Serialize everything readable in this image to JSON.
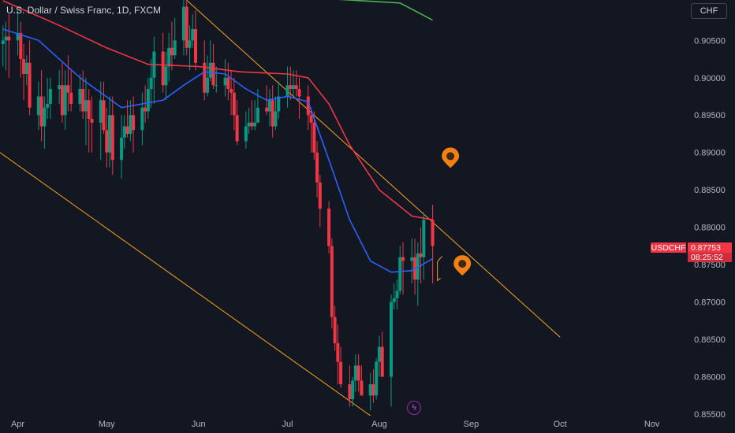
{
  "header": {
    "title": "U.S. Dollar / Swiss Franc, 1D, FXCM",
    "currency_button": "CHF"
  },
  "price_badge": {
    "symbol": "USDCHF",
    "price": "0.87753",
    "countdown": "08:25:52",
    "color": "#f23645"
  },
  "lightning_icon": "lightning-icon",
  "colors": {
    "background": "#131722",
    "up": "#089981",
    "down": "#f23645",
    "ma_fast": "#2962ff",
    "ma_slow": "#f23645",
    "ma_long": "#4caf50",
    "channel": "#f7a21b",
    "marker": "#f57f17"
  },
  "chart_data": {
    "type": "candlestick",
    "symbol": "USDCHF",
    "timeframe": "1D",
    "y_axis": {
      "ylim": [
        0.8548,
        0.9104
      ],
      "ticks": [
        "0.90500",
        "0.90000",
        "0.89500",
        "0.89000",
        "0.88500",
        "0.88000",
        "0.87500",
        "0.87000",
        "0.86500",
        "0.86000",
        "0.85500"
      ]
    },
    "x_axis": {
      "ticks": [
        "Apr",
        "May",
        "Jun",
        "Jul",
        "Aug",
        "Sep",
        "Oct",
        "Nov"
      ],
      "tick_dates": [
        "2024-04-01",
        "2024-05-01",
        "2024-06-01",
        "2024-07-01",
        "2024-08-01",
        "2024-09-01",
        "2024-10-01",
        "2024-11-01"
      ],
      "xlim": [
        "2024-03-26",
        "2024-11-12"
      ]
    },
    "series": [
      {
        "kind": "ohlc",
        "dates": [
          "2024-03-27",
          "2024-03-28",
          "2024-03-29",
          "2024-04-01",
          "2024-04-02",
          "2024-04-03",
          "2024-04-04",
          "2024-04-05",
          "2024-04-08",
          "2024-04-09",
          "2024-04-10",
          "2024-04-11",
          "2024-04-12",
          "2024-04-15",
          "2024-04-16",
          "2024-04-17",
          "2024-04-18",
          "2024-04-19",
          "2024-04-22",
          "2024-04-23",
          "2024-04-24",
          "2024-04-25",
          "2024-04-26",
          "2024-04-29",
          "2024-04-30",
          "2024-05-01",
          "2024-05-02",
          "2024-05-03",
          "2024-05-06",
          "2024-05-07",
          "2024-05-08",
          "2024-05-09",
          "2024-05-10",
          "2024-05-13",
          "2024-05-14",
          "2024-05-15",
          "2024-05-16",
          "2024-05-17",
          "2024-05-20",
          "2024-05-21",
          "2024-05-22",
          "2024-05-23",
          "2024-05-24",
          "2024-05-27",
          "2024-05-28",
          "2024-05-29",
          "2024-05-30",
          "2024-05-31",
          "2024-06-03",
          "2024-06-04",
          "2024-06-05",
          "2024-06-06",
          "2024-06-07",
          "2024-06-10",
          "2024-06-11",
          "2024-06-12",
          "2024-06-13",
          "2024-06-14",
          "2024-06-17",
          "2024-06-18",
          "2024-06-19",
          "2024-06-20",
          "2024-06-21",
          "2024-06-24",
          "2024-06-25",
          "2024-06-26",
          "2024-06-27",
          "2024-06-28",
          "2024-07-01",
          "2024-07-02",
          "2024-07-03",
          "2024-07-04",
          "2024-07-05",
          "2024-07-08",
          "2024-07-09",
          "2024-07-10",
          "2024-07-11",
          "2024-07-12",
          "2024-07-15",
          "2024-07-16",
          "2024-07-17",
          "2024-07-18",
          "2024-07-19",
          "2024-07-22",
          "2024-07-23",
          "2024-07-24",
          "2024-07-25",
          "2024-07-26",
          "2024-07-29",
          "2024-07-30",
          "2024-07-31",
          "2024-08-01",
          "2024-08-02",
          "2024-08-05",
          "2024-08-06",
          "2024-08-07",
          "2024-08-08",
          "2024-08-09",
          "2024-08-12",
          "2024-08-13",
          "2024-08-14",
          "2024-08-15",
          "2024-08-16",
          "2024-08-19"
        ],
        "open": [
          0.9045,
          0.905,
          0.9055,
          0.905,
          0.906,
          0.9025,
          0.9005,
          0.902,
          0.895,
          0.8975,
          0.8935,
          0.896,
          0.8965,
          0.8985,
          0.899,
          0.895,
          0.899,
          0.898,
          0.8965,
          0.8985,
          0.8955,
          0.897,
          0.8945,
          0.894,
          0.897,
          0.893,
          0.89,
          0.895,
          0.889,
          0.892,
          0.8935,
          0.8925,
          0.895,
          0.893,
          0.896,
          0.8955,
          0.8985,
          0.9,
          0.9035,
          0.899,
          0.9015,
          0.904,
          0.903,
          0.905,
          0.9095,
          0.904,
          0.905,
          0.9065,
          0.902,
          0.898,
          0.9,
          0.902,
          0.899,
          0.899,
          0.9,
          0.8985,
          0.898,
          0.895,
          0.8915,
          0.8935,
          0.894,
          0.8935,
          0.894,
          0.896,
          0.8955,
          0.897,
          0.8935,
          0.8955,
          0.8975,
          0.899,
          0.8985,
          0.899,
          0.8985,
          0.8975,
          0.895,
          0.894,
          0.89,
          0.886,
          0.8825,
          0.8775,
          0.868,
          0.8645,
          0.862,
          0.859,
          0.857,
          0.8595,
          0.8615,
          0.8595,
          0.8575,
          0.859,
          0.8575,
          0.862,
          0.864,
          0.86,
          0.87,
          0.8705,
          0.8715,
          0.876,
          0.8755,
          0.876,
          0.873,
          0.8765,
          0.876,
          0.881
        ],
        "high": [
          0.907,
          0.9075,
          0.9085,
          0.909,
          0.9075,
          0.9045,
          0.903,
          0.905,
          0.8995,
          0.901,
          0.8975,
          0.9,
          0.9,
          0.901,
          0.902,
          0.901,
          0.903,
          0.901,
          0.9005,
          0.901,
          0.9,
          0.8985,
          0.8975,
          0.8995,
          0.8995,
          0.896,
          0.8975,
          0.8975,
          0.895,
          0.895,
          0.897,
          0.897,
          0.8975,
          0.898,
          0.899,
          0.9,
          0.9025,
          0.9055,
          0.906,
          0.9035,
          0.906,
          0.9075,
          0.908,
          0.911,
          0.9105,
          0.907,
          0.9085,
          0.909,
          0.905,
          0.903,
          0.905,
          0.9045,
          0.9015,
          0.9025,
          0.902,
          0.901,
          0.9,
          0.897,
          0.8955,
          0.896,
          0.897,
          0.897,
          0.8985,
          0.899,
          0.8985,
          0.899,
          0.8975,
          0.8995,
          0.9015,
          0.9015,
          0.901,
          0.901,
          0.9,
          0.899,
          0.896,
          0.8955,
          0.8915,
          0.887,
          0.8835,
          0.8785,
          0.8695,
          0.867,
          0.864,
          0.8615,
          0.86,
          0.863,
          0.863,
          0.8615,
          0.8605,
          0.861,
          0.8625,
          0.8655,
          0.866,
          0.871,
          0.8725,
          0.873,
          0.8775,
          0.878,
          0.8785,
          0.8785,
          0.878,
          0.88,
          0.882,
          0.883
        ],
        "low": [
          0.9015,
          0.901,
          0.9,
          0.903,
          0.9,
          0.897,
          0.899,
          0.895,
          0.893,
          0.8915,
          0.8905,
          0.8945,
          0.8945,
          0.8965,
          0.894,
          0.893,
          0.8955,
          0.8955,
          0.8955,
          0.8945,
          0.891,
          0.89,
          0.89,
          0.889,
          0.8925,
          0.888,
          0.888,
          0.887,
          0.8865,
          0.8905,
          0.892,
          0.8915,
          0.89,
          0.891,
          0.894,
          0.8945,
          0.896,
          0.8965,
          0.898,
          0.897,
          0.8995,
          0.901,
          0.9025,
          0.903,
          0.903,
          0.901,
          0.904,
          0.901,
          0.897,
          0.8975,
          0.8995,
          0.8985,
          0.898,
          0.8975,
          0.897,
          0.895,
          0.893,
          0.891,
          0.8905,
          0.8925,
          0.893,
          0.893,
          0.894,
          0.895,
          0.8935,
          0.892,
          0.893,
          0.8945,
          0.896,
          0.897,
          0.8975,
          0.8975,
          0.8945,
          0.893,
          0.89,
          0.889,
          0.884,
          0.88,
          0.8765,
          0.8665,
          0.8635,
          0.859,
          0.8585,
          0.856,
          0.856,
          0.858,
          0.858,
          0.8575,
          0.8555,
          0.8565,
          0.857,
          0.86,
          0.86,
          0.856,
          0.869,
          0.869,
          0.871,
          0.871,
          0.8725,
          0.871,
          0.8695,
          0.8725,
          0.873,
          0.8725
        ],
        "close": [
          0.905,
          0.9055,
          0.905,
          0.906,
          0.9025,
          0.9005,
          0.902,
          0.896,
          0.8975,
          0.8935,
          0.896,
          0.8965,
          0.8985,
          0.899,
          0.895,
          0.899,
          0.898,
          0.8965,
          0.8985,
          0.8955,
          0.897,
          0.8945,
          0.894,
          0.897,
          0.893,
          0.89,
          0.895,
          0.889,
          0.892,
          0.8935,
          0.8925,
          0.895,
          0.893,
          0.896,
          0.8955,
          0.8985,
          0.9,
          0.9035,
          0.899,
          0.9015,
          0.904,
          0.903,
          0.905,
          0.9095,
          0.904,
          0.905,
          0.9065,
          0.902,
          0.898,
          0.9,
          0.902,
          0.899,
          0.899,
          0.9,
          0.8985,
          0.898,
          0.895,
          0.8915,
          0.8935,
          0.894,
          0.8935,
          0.894,
          0.896,
          0.8955,
          0.897,
          0.8935,
          0.8955,
          0.8975,
          0.899,
          0.8985,
          0.899,
          0.8985,
          0.8975,
          0.895,
          0.894,
          0.89,
          0.886,
          0.8825,
          0.8775,
          0.868,
          0.8645,
          0.862,
          0.859,
          0.857,
          0.8595,
          0.8615,
          0.8595,
          0.8575,
          0.859,
          0.8575,
          0.862,
          0.864,
          0.86,
          0.87,
          0.8705,
          0.8715,
          0.876,
          0.8755,
          0.876,
          0.873,
          0.8765,
          0.876,
          0.881,
          0.8775
        ]
      },
      {
        "kind": "line",
        "name": "",
        "color": "#2962ff",
        "points": [
          [
            "2024-03-27",
            0.9065
          ],
          [
            "2024-04-08",
            0.905
          ],
          [
            "2024-04-22",
            0.9
          ],
          [
            "2024-05-06",
            0.896
          ],
          [
            "2024-05-20",
            0.897
          ],
          [
            "2024-05-27",
            0.899
          ],
          [
            "2024-06-03",
            0.9008
          ],
          [
            "2024-06-10",
            0.9005
          ],
          [
            "2024-06-17",
            0.8985
          ],
          [
            "2024-06-24",
            0.897
          ],
          [
            "2024-07-01",
            0.8975
          ],
          [
            "2024-07-08",
            0.8968
          ],
          [
            "2024-07-15",
            0.889
          ],
          [
            "2024-07-22",
            0.881
          ],
          [
            "2024-07-29",
            0.8755
          ],
          [
            "2024-08-05",
            0.874
          ],
          [
            "2024-08-12",
            0.8742
          ],
          [
            "2024-08-19",
            0.8758
          ]
        ]
      },
      {
        "kind": "line",
        "name": "",
        "color": "#f23645",
        "points": [
          [
            "2024-03-27",
            0.9103
          ],
          [
            "2024-04-15",
            0.907
          ],
          [
            "2024-05-01",
            0.904
          ],
          [
            "2024-05-15",
            0.9018
          ],
          [
            "2024-06-01",
            0.9015
          ],
          [
            "2024-06-15",
            0.9008
          ],
          [
            "2024-07-01",
            0.9005
          ],
          [
            "2024-07-08",
            0.9
          ],
          [
            "2024-07-15",
            0.8965
          ],
          [
            "2024-07-22",
            0.891
          ],
          [
            "2024-08-01",
            0.885
          ],
          [
            "2024-08-12",
            0.8815
          ],
          [
            "2024-08-19",
            0.881
          ]
        ]
      },
      {
        "kind": "line",
        "name": "",
        "color": "#4caf50",
        "points": [
          [
            "2024-06-26",
            0.911
          ],
          [
            "2024-08-08",
            0.91
          ],
          [
            "2024-08-19",
            0.9077
          ]
        ]
      }
    ],
    "annotations": [
      {
        "kind": "trendline",
        "color": "#f7a21b",
        "from": [
          "2024-05-24",
          0.9118
        ],
        "to": [
          "2024-10-01",
          0.8653
        ]
      },
      {
        "kind": "trendline",
        "color": "#f7a21b",
        "from": [
          "2024-03-26",
          0.89
        ],
        "to": [
          "2024-07-29",
          0.8548
        ]
      },
      {
        "kind": "marker",
        "color": "#f57f17",
        "at": [
          "2024-08-25",
          0.8892
        ]
      },
      {
        "kind": "marker",
        "color": "#f57f17",
        "at": [
          "2024-08-29",
          0.8748
        ]
      }
    ],
    "grid": false,
    "legend": "none"
  }
}
